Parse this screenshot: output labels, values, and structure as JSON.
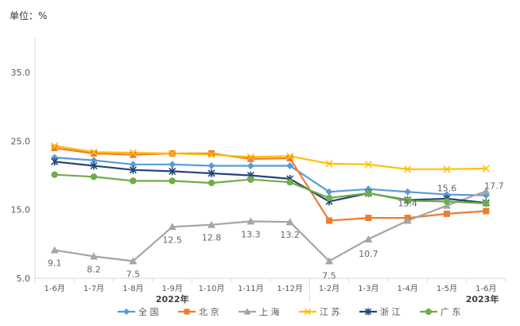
{
  "chart_data": {
    "type": "line",
    "unit_label": "单位：%",
    "categories": [
      "1-6月",
      "1-7月",
      "1-8月",
      "1-9月",
      "1-10月",
      "1-11月",
      "1-12月",
      "1-2月",
      "1-3月",
      "1-4月",
      "1-5月",
      "1-6月"
    ],
    "year_labels": [
      {
        "text": "2022年",
        "span": [
          0,
          6
        ]
      },
      {
        "text": "2023年",
        "span": [
          7,
          11
        ]
      }
    ],
    "ylim": [
      5.0,
      40.0
    ],
    "yticks": [
      5.0,
      15.0,
      25.0,
      35.0
    ],
    "ytick_labels": [
      "5.0",
      "15.0",
      "25.0",
      "35.0"
    ],
    "grid": false,
    "legend_position": "bottom",
    "series": [
      {
        "name": "全  国",
        "color": "#5b9bd5",
        "marker": "diamond",
        "values": [
          22.6,
          22.2,
          21.6,
          21.6,
          21.4,
          21.4,
          21.4,
          17.6,
          18.0,
          17.6,
          17.2,
          17.1
        ]
      },
      {
        "name": "北  京",
        "color": "#ed7d31",
        "marker": "square",
        "values": [
          24.0,
          23.2,
          23.0,
          23.2,
          23.2,
          22.4,
          22.5,
          13.4,
          13.8,
          13.8,
          14.4,
          14.8
        ]
      },
      {
        "name": "上  海",
        "color": "#a5a5a5",
        "marker": "triangle",
        "values": [
          9.1,
          8.2,
          7.5,
          12.5,
          12.8,
          13.3,
          13.2,
          7.5,
          10.7,
          13.4,
          15.6,
          17.7
        ]
      },
      {
        "name": "江  苏",
        "color": "#ffc000",
        "marker": "x",
        "values": [
          24.3,
          23.4,
          23.3,
          23.2,
          23.0,
          22.7,
          22.8,
          21.7,
          21.6,
          20.9,
          20.9,
          21.0
        ]
      },
      {
        "name": "浙  江",
        "color": "#264478",
        "marker": "star",
        "values": [
          22.0,
          21.4,
          20.8,
          20.6,
          20.3,
          20.0,
          19.5,
          16.2,
          17.4,
          16.4,
          16.6,
          16.0
        ]
      },
      {
        "name": "广  东",
        "color": "#70ad47",
        "marker": "circle",
        "values": [
          20.1,
          19.8,
          19.2,
          19.2,
          18.9,
          19.4,
          19.0,
          16.7,
          17.4,
          16.3,
          16.2,
          15.9
        ]
      }
    ],
    "data_labels": [
      {
        "series": 2,
        "index": 0,
        "text": "9.1"
      },
      {
        "series": 2,
        "index": 1,
        "text": "8.2"
      },
      {
        "series": 2,
        "index": 2,
        "text": "7.5"
      },
      {
        "series": 2,
        "index": 3,
        "text": "12.5"
      },
      {
        "series": 2,
        "index": 4,
        "text": "12.8"
      },
      {
        "series": 2,
        "index": 5,
        "text": "13.3"
      },
      {
        "series": 2,
        "index": 6,
        "text": "13.2"
      },
      {
        "series": 2,
        "index": 7,
        "text": "7.5"
      },
      {
        "series": 2,
        "index": 8,
        "text": "10.7"
      },
      {
        "series": 2,
        "index": 9,
        "text": "13.4"
      },
      {
        "series": 2,
        "index": 10,
        "text": "15.6"
      },
      {
        "series": 2,
        "index": 11,
        "text": "17.7"
      }
    ]
  }
}
